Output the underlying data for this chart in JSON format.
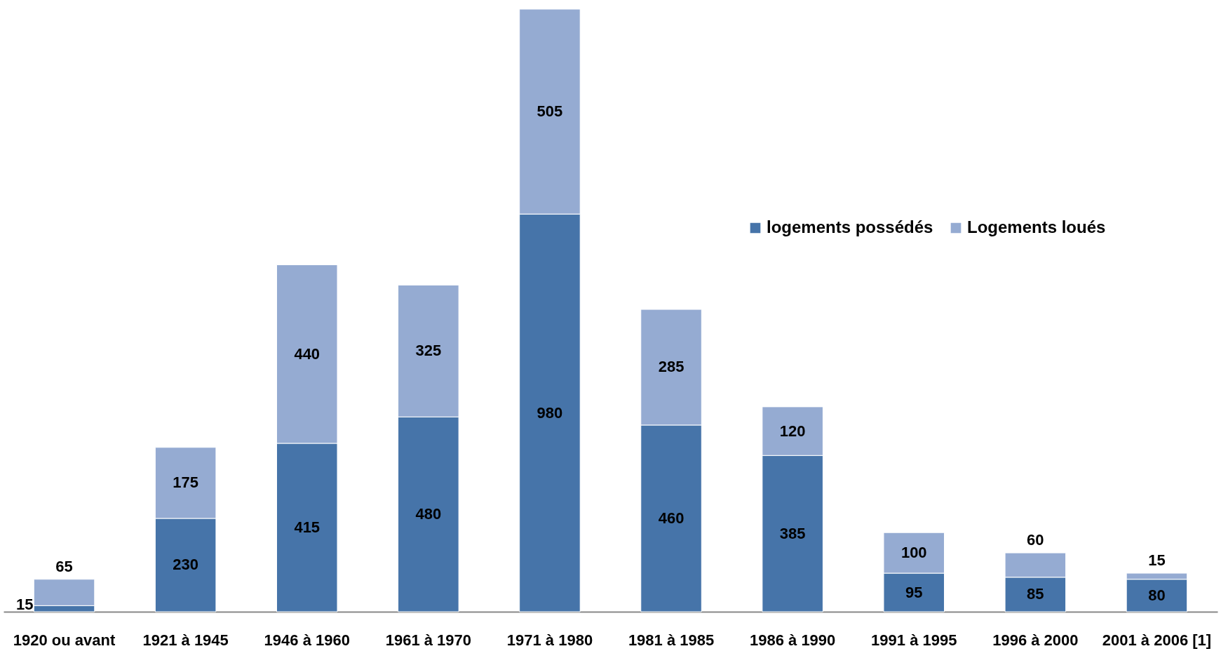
{
  "chart_data": {
    "type": "bar",
    "stacked": true,
    "data_labels": true,
    "legend": "right",
    "categories": [
      "1920 ou avant",
      "1921 à 1945",
      "1946 à 1960",
      "1961 à 1970",
      "1971 à 1980",
      "1981 à 1985",
      "1986 à 1990",
      "1991 à 1995",
      "1996 à 2000",
      "2001 à 2006 [1]"
    ],
    "series": [
      {
        "name": "logements possédés",
        "color": "#4674a9",
        "values": [
          15,
          230,
          415,
          480,
          980,
          460,
          385,
          95,
          85,
          80
        ]
      },
      {
        "name": "Logements loués",
        "color": "#95abd2",
        "values": [
          65,
          175,
          440,
          325,
          505,
          285,
          120,
          100,
          60,
          15
        ]
      }
    ]
  }
}
